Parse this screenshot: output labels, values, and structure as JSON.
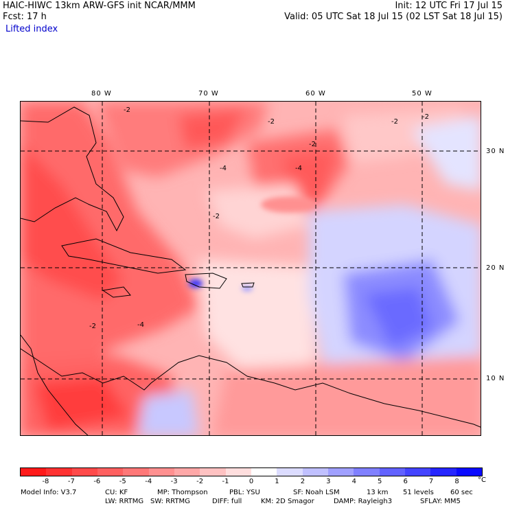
{
  "header": {
    "left_line1": "HAIC-HIWC 13km ARW-GFS init   NCAR/MMM",
    "left_line2": "Fcst:   17 h",
    "right_line1": "Init: 12 UTC Fri 17 Jul 15",
    "right_line2": "Valid: 05 UTC Sat 18 Jul 15 (02 LST Sat 18 Jul 15)",
    "field": "Lifted index"
  },
  "axes": {
    "lon_labels": [
      "80 W",
      "70 W",
      "60 W",
      "50 W"
    ],
    "lat_labels": [
      "30 N",
      "20 N",
      "10 N"
    ]
  },
  "contour_labels": [
    "-2",
    "-2",
    "-2",
    "-2",
    "-2",
    "-4",
    "-4",
    "-4",
    "-2",
    "-2"
  ],
  "colorbar": {
    "ticks": [
      "-8",
      "-7",
      "-6",
      "-5",
      "-4",
      "-3",
      "-2",
      "-1",
      "0",
      "1",
      "2",
      "3",
      "4",
      "5",
      "6",
      "7",
      "8"
    ],
    "unit": "°C",
    "colors": [
      "#ff1a1a",
      "#ff3232",
      "#ff4a4a",
      "#ff6060",
      "#ff7878",
      "#ff9090",
      "#ffa8a8",
      "#ffc2c2",
      "#ffdede",
      "#ffffff",
      "#dcdcff",
      "#c0c0ff",
      "#a0a0ff",
      "#8080ff",
      "#6262ff",
      "#4444ff",
      "#2626ff",
      "#0a0aff"
    ]
  },
  "footer": {
    "line1": [
      "Model Info: V3.7",
      "CU: KF",
      "MP: Thompson",
      "PBL: YSU",
      "SF: Noah LSM",
      "13 km",
      "51 levels",
      "60 sec"
    ],
    "line2": [
      "LW: RRTMG",
      "SW: RRTMG",
      "DIFF: full",
      "KM: 2D Smagor",
      "DAMP: Rayleigh3",
      "SFLAY: MM5"
    ]
  }
}
